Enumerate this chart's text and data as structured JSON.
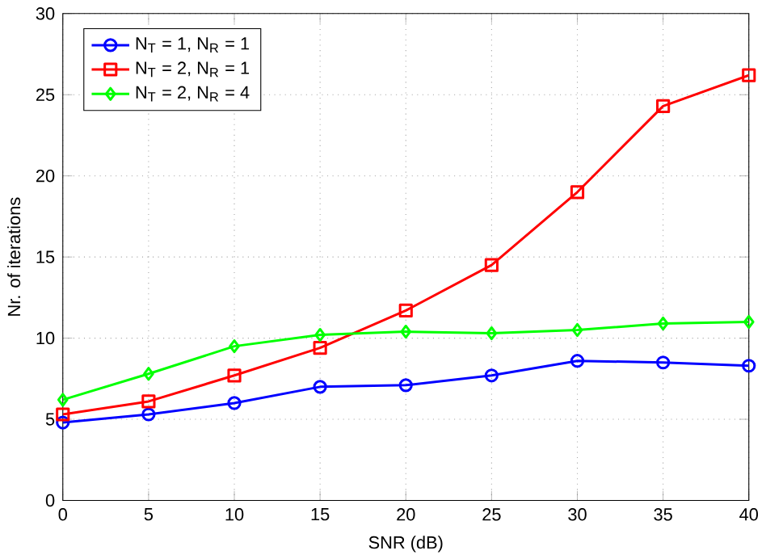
{
  "chart_data": {
    "type": "line",
    "xlabel": "SNR (dB)",
    "ylabel": "Nr. of iterations",
    "x": [
      0,
      5,
      10,
      15,
      20,
      25,
      30,
      35,
      40
    ],
    "series": [
      {
        "name": "N$_{T}$ = 1, N$_{R}$ = 1",
        "color": "#0000ff",
        "marker": "circle",
        "values": [
          4.8,
          5.3,
          6.0,
          7.0,
          7.1,
          7.7,
          8.6,
          8.5,
          8.3
        ]
      },
      {
        "name": "N$_{T}$ = 2, N$_{R}$ = 1",
        "color": "#ff0000",
        "marker": "square",
        "values": [
          5.3,
          6.1,
          7.7,
          9.4,
          11.7,
          14.5,
          19.0,
          24.3,
          26.2
        ]
      },
      {
        "name": "N$_{T}$ = 2, N$_{R}$ = 4",
        "color": "#00ff00",
        "marker": "diamond",
        "values": [
          6.2,
          7.8,
          9.5,
          10.2,
          10.4,
          10.3,
          10.5,
          10.9,
          11.0
        ]
      }
    ],
    "xlim": [
      0,
      40
    ],
    "ylim": [
      0,
      30
    ],
    "xticks": [
      0,
      5,
      10,
      15,
      20,
      25,
      30,
      35,
      40
    ],
    "yticks": [
      0,
      5,
      10,
      15,
      20,
      25,
      30
    ],
    "grid": true,
    "legend": "top left",
    "line_style": "solid"
  }
}
